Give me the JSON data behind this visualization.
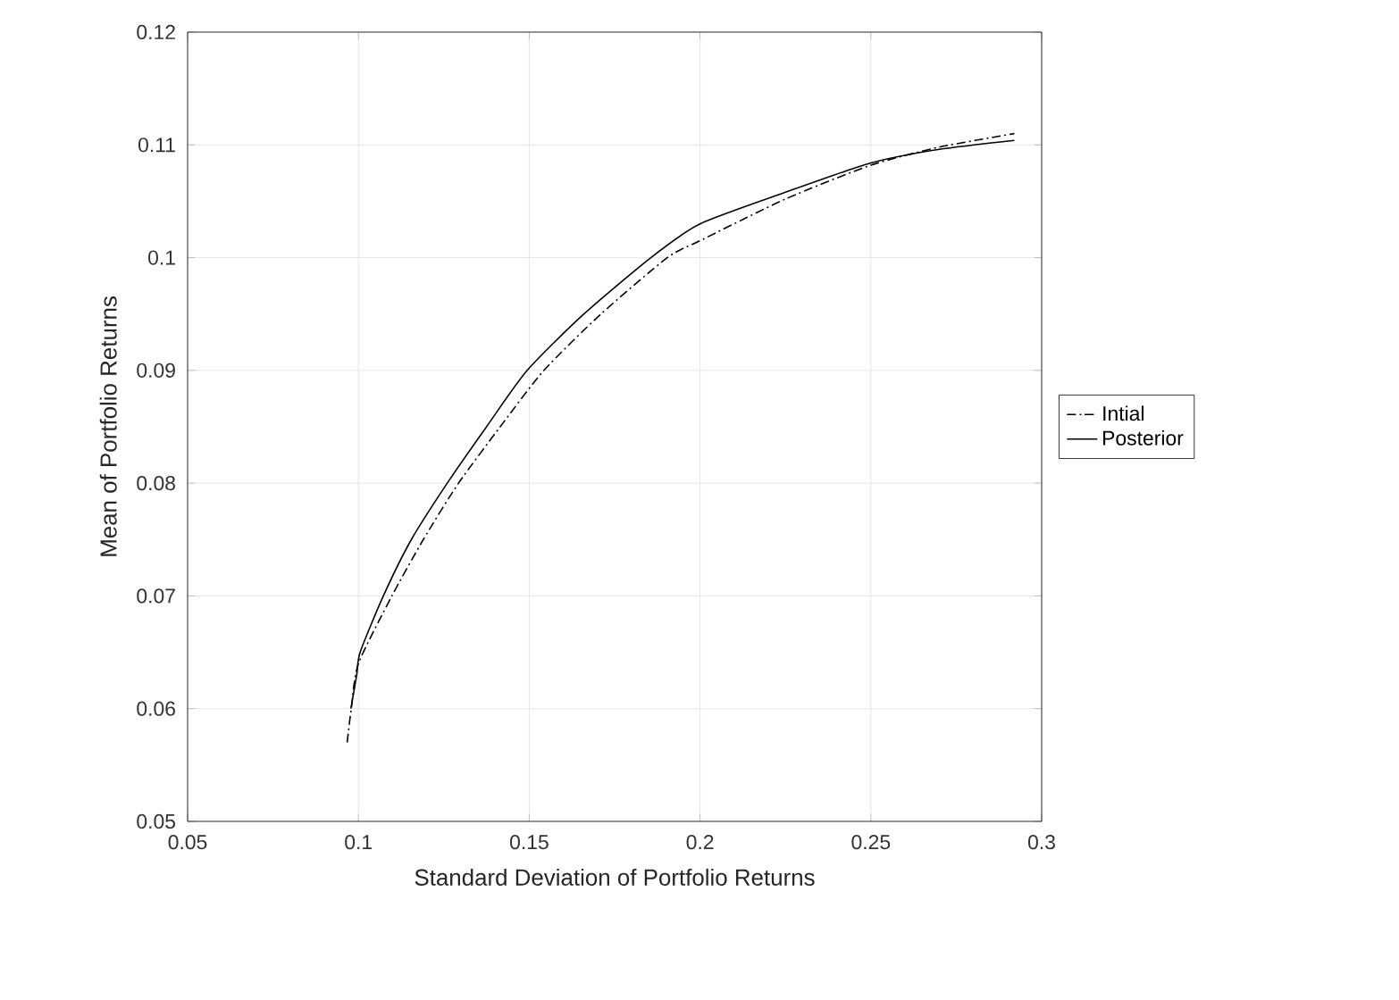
{
  "chart_data": {
    "type": "line",
    "xlabel": "Standard Deviation of Portfolio Returns",
    "ylabel": "Mean of Portfolio Returns",
    "xlim": [
      0.05,
      0.3
    ],
    "xticks": [
      0.05,
      0.1,
      0.15,
      0.2,
      0.25,
      0.3
    ],
    "ylim": [
      0.05,
      0.12
    ],
    "yticks": [
      0.05,
      0.06,
      0.07,
      0.08,
      0.09,
      0.1,
      0.11,
      0.12
    ],
    "grid": true,
    "legend": "right",
    "series": [
      {
        "name": "Intial",
        "color": "#000000",
        "line_style": "dashdot",
        "x": [
          0.0967,
          0.0979,
          0.1,
          0.1098,
          0.119,
          0.1293,
          0.1415,
          0.1543,
          0.171,
          0.1904,
          0.2,
          0.225,
          0.25,
          0.27,
          0.292
        ],
        "values": [
          0.057,
          0.06,
          0.064,
          0.07,
          0.075,
          0.08,
          0.085,
          0.09,
          0.095,
          0.1,
          0.1015,
          0.1052,
          0.1082,
          0.1098,
          0.111
        ]
      },
      {
        "name": "Posterior",
        "color": "#000000",
        "line_style": "solid",
        "x": [
          0.0978,
          0.0995,
          0.1005,
          0.1073,
          0.1155,
          0.126,
          0.1375,
          0.1494,
          0.166,
          0.1856,
          0.2,
          0.225,
          0.25,
          0.27,
          0.292
        ],
        "values": [
          0.06,
          0.063,
          0.065,
          0.07,
          0.075,
          0.08,
          0.085,
          0.09,
          0.095,
          0.1,
          0.103,
          0.1058,
          0.1084,
          0.1096,
          0.1104
        ]
      }
    ]
  }
}
